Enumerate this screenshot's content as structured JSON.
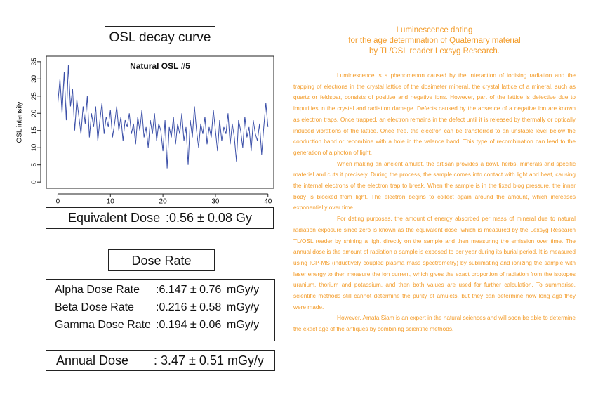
{
  "osl": {
    "heading": "OSL decay curve",
    "chart_data": {
      "type": "line",
      "title": "Natural OSL #5",
      "y_label": "OSL intensity",
      "x": [
        0,
        0.4,
        0.8,
        1.2,
        1.6,
        2,
        2.4,
        2.8,
        3.2,
        3.6,
        4,
        4.4,
        4.8,
        5.2,
        5.6,
        6,
        6.4,
        6.8,
        7.2,
        7.6,
        8,
        8.4,
        8.8,
        9.2,
        9.6,
        10,
        10.4,
        10.8,
        11.2,
        11.6,
        12,
        12.4,
        12.8,
        13.2,
        13.6,
        14,
        14.4,
        14.8,
        15.2,
        15.6,
        16,
        16.4,
        16.8,
        17.2,
        17.6,
        18,
        18.4,
        18.8,
        19.2,
        19.6,
        20,
        20.4,
        20.8,
        21.2,
        21.6,
        22,
        22.4,
        22.8,
        23.2,
        23.6,
        24,
        24.4,
        24.8,
        25.2,
        25.6,
        26,
        26.4,
        26.8,
        27.2,
        27.6,
        28,
        28.4,
        28.8,
        29.2,
        29.6,
        30,
        30.4,
        30.8,
        31.2,
        31.6,
        32,
        32.4,
        32.8,
        33.2,
        33.6,
        34,
        34.4,
        34.8,
        35.2,
        35.6,
        36,
        36.4,
        36.8,
        37.2,
        37.6,
        38,
        38.4,
        38.8,
        39.2,
        39.6,
        40
      ],
      "series": [
        {
          "color": "#3b4fa8",
          "values": [
            23,
            30,
            20,
            32,
            18,
            34,
            22,
            27,
            15,
            24,
            19,
            14,
            22,
            17,
            25,
            13,
            20,
            16,
            22,
            12,
            18,
            23,
            14,
            19,
            16,
            21,
            13,
            17,
            22,
            15,
            19,
            12,
            18,
            16,
            20,
            14,
            17,
            11,
            19,
            15,
            21,
            13,
            16,
            10,
            18,
            14,
            20,
            12,
            17,
            15,
            9,
            18,
            4,
            16,
            13,
            19,
            11,
            17,
            14,
            20,
            12,
            16,
            5,
            18,
            13,
            22,
            15,
            10,
            17,
            14,
            19,
            11,
            16,
            13,
            21,
            15,
            9,
            18,
            12,
            16,
            14,
            20,
            11,
            17,
            13,
            6,
            18,
            15,
            10,
            19,
            13,
            16,
            9,
            18,
            14,
            12,
            17,
            8,
            16,
            23,
            16
          ]
        }
      ],
      "xlim": [
        -2.2,
        41.1
      ],
      "ylim": [
        -1.8,
        36.6
      ],
      "xticks": [
        0,
        10,
        20,
        30,
        40
      ],
      "yticks": [
        0,
        5,
        10,
        15,
        20,
        25,
        30,
        35
      ]
    }
  },
  "equivalent_dose": {
    "label": "Equivalent Dose",
    "value": ":0.56 ± 0.08 Gy"
  },
  "dose_rate": {
    "heading": "Dose Rate",
    "rows": [
      [
        "Alpha Dose Rate",
        ":6.147 ± 0.76",
        "mGy/y"
      ],
      [
        "Beta Dose Rate",
        ":0.216 ± 0.58",
        "mGy/y"
      ],
      [
        "Gamma Dose Rate",
        ":0.194 ± 0.06",
        "mGy/y"
      ]
    ]
  },
  "annual_dose": {
    "label": "Annual Dose",
    "value": ": 3.47 ± 0.51 mGy/y"
  },
  "article": {
    "title": [
      "Luminescence dating",
      "for the age determination of Quaternary material",
      "by TL/OSL reader Lexsyg Research."
    ],
    "paragraphs": [
      "Luminescence is a phenomenon caused by the interaction of ionising radiation and the trapping of electrons in the crystal lattice of the dosimeter mineral. the crystal lattice of a mineral, such as quartz or feldspar, consists of positive and negative ions. However, part of the lattice is defective due to impurities in the crystal and radiation damage. Defects caused by the absence of a negative ion are known as electron traps. Once trapped, an electron remains in the defect until it is released by thermally or optically induced vibrations of the lattice. Once free, the electron can be transferred to an unstable level below the conduction band or recombine with a hole in the valence band. This type of recombination can lead to the generation of a photon of light.",
      "When making an ancient amulet, the artisan provides a bowl, herbs, minerals and specific material and cuts it precisely. During the process, the sample comes into contact with light and heat, causing the internal electrons of the electron trap to break. When the sample is in the fixed blog pressure, the inner body is blocked from light. The electron begins to collect again around the amount, which increases exponentially over time.",
      "For dating purposes, the amount of energy absorbed per mass of mineral due to natural radiation exposure since zero is known as the equivalent dose, which is measured by the Lexsyg Research TL/OSL reader by shining a light directly on the sample and then measuring the emission over time. The annual dose is the amount of radiation a sample is exposed to per year during its burial period. It is measured using ICP-MS (inductively coupled plasma mass spectrometry) by sublimating and ionizing the sample with laser energy to then measure the ion current, which gives the exact proportion of radiation from the isotopes uranium, thorium and potassium, and then both values are used for further calculation. To summarise, scientific methods still cannot determine the purity of amulets, but they can determine how long ago they were made.",
      "However, Amata Siam is an expert in the natural sciences and will soon be able to determine the exact age of the antiques by combining scientific methods."
    ]
  }
}
